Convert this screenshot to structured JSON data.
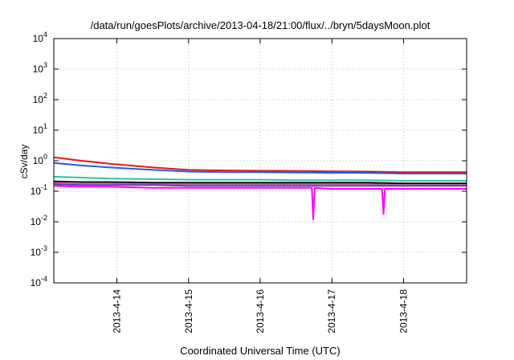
{
  "chart_data": {
    "type": "line",
    "title": "/data/run/goesPlots/archive/2013-04-18/21:00/flux/../bryn/5daysMoon.plot",
    "xlabel": "Coordinated Universal Time (UTC)",
    "ylabel": "cSv/day",
    "yscale": "log",
    "ylim": [
      0.0001,
      10000
    ],
    "xlim": [
      13.12,
      18.88
    ],
    "grid": true,
    "y_ticks": [
      {
        "value": -4,
        "base": "10",
        "exp": "-4"
      },
      {
        "value": -3,
        "base": "10",
        "exp": "-3"
      },
      {
        "value": -2,
        "base": "10",
        "exp": "-2"
      },
      {
        "value": -1,
        "base": "10",
        "exp": "-1"
      },
      {
        "value": 0,
        "base": "10",
        "exp": "0"
      },
      {
        "value": 1,
        "base": "10",
        "exp": "1"
      },
      {
        "value": 2,
        "base": "10",
        "exp": "2"
      },
      {
        "value": 3,
        "base": "10",
        "exp": "3"
      },
      {
        "value": 4,
        "base": "10",
        "exp": "4"
      }
    ],
    "x_ticks": [
      {
        "value": 14,
        "label": "2013-4-14"
      },
      {
        "value": 15,
        "label": "2013-4-15"
      },
      {
        "value": 16,
        "label": "2013-4-16"
      },
      {
        "value": 17,
        "label": "2013-4-17"
      },
      {
        "value": 18,
        "label": "2013-4-18"
      }
    ],
    "series": [
      {
        "color": "#e8141c",
        "x": [
          13.12,
          13.5,
          13.9,
          14.5,
          15.0,
          15.5,
          16.0,
          16.5,
          17.0,
          17.5,
          18.0,
          18.5,
          18.88
        ],
        "values": [
          1.3,
          1.0,
          0.8,
          0.6,
          0.5,
          0.48,
          0.47,
          0.46,
          0.45,
          0.44,
          0.42,
          0.42,
          0.42
        ]
      },
      {
        "color": "#1a5fe0",
        "x": [
          13.12,
          13.5,
          13.9,
          14.5,
          15.0,
          15.5,
          16.0,
          16.5,
          17.0,
          17.5,
          18.0,
          18.5,
          18.88
        ],
        "values": [
          0.85,
          0.7,
          0.6,
          0.5,
          0.44,
          0.42,
          0.42,
          0.41,
          0.4,
          0.4,
          0.38,
          0.38,
          0.38
        ]
      },
      {
        "color": "#2ec4a0",
        "x": [
          13.12,
          13.5,
          13.9,
          14.5,
          15.0,
          15.5,
          16.0,
          16.5,
          17.0,
          17.5,
          18.0,
          18.5,
          18.88
        ],
        "values": [
          0.3,
          0.28,
          0.26,
          0.25,
          0.24,
          0.24,
          0.24,
          0.23,
          0.23,
          0.23,
          0.22,
          0.22,
          0.22
        ]
      },
      {
        "color": "#000000",
        "x": [
          13.12,
          13.5,
          13.9,
          14.5,
          15.0,
          15.5,
          16.0,
          16.5,
          17.0,
          17.5,
          18.0,
          18.5,
          18.88
        ],
        "values": [
          0.21,
          0.2,
          0.2,
          0.19,
          0.19,
          0.19,
          0.19,
          0.19,
          0.19,
          0.19,
          0.18,
          0.18,
          0.18
        ]
      },
      {
        "color": "#c060a0",
        "x": [
          13.12,
          13.5,
          13.9,
          14.5,
          15.0,
          15.5,
          16.0,
          16.5,
          17.0,
          17.5,
          18.0,
          18.5,
          18.88
        ],
        "values": [
          0.19,
          0.18,
          0.18,
          0.17,
          0.17,
          0.17,
          0.17,
          0.17,
          0.17,
          0.17,
          0.16,
          0.16,
          0.16
        ]
      },
      {
        "color": "#6a3fb0",
        "x": [
          13.12,
          13.5,
          13.9,
          14.5,
          15.0,
          15.5,
          16.0,
          16.5,
          17.0,
          17.5,
          18.0,
          18.5,
          18.88
        ],
        "values": [
          0.17,
          0.16,
          0.16,
          0.16,
          0.15,
          0.15,
          0.15,
          0.15,
          0.15,
          0.15,
          0.15,
          0.15,
          0.15
        ]
      },
      {
        "color": "#ff00ff",
        "x": [
          13.12,
          13.5,
          13.9,
          14.5,
          15.0,
          15.5,
          16.0,
          16.5,
          16.72,
          16.74,
          16.76,
          17.0,
          17.5,
          17.7,
          17.72,
          17.74,
          18.0,
          18.5,
          18.88
        ],
        "values": [
          0.15,
          0.14,
          0.14,
          0.13,
          0.13,
          0.13,
          0.13,
          0.13,
          0.13,
          0.012,
          0.13,
          0.12,
          0.12,
          0.12,
          0.018,
          0.12,
          0.12,
          0.12,
          0.12
        ]
      }
    ]
  }
}
